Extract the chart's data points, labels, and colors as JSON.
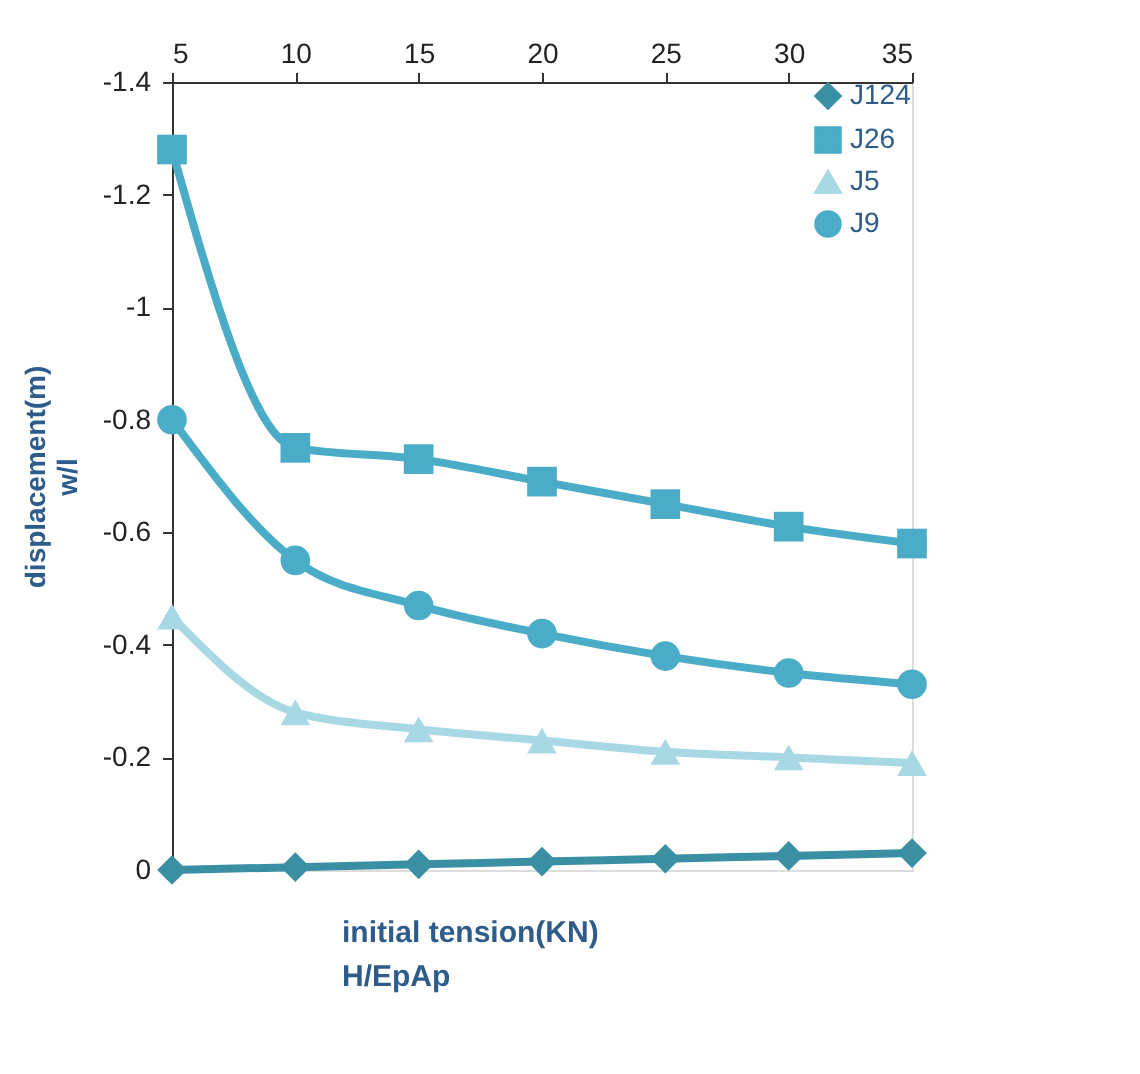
{
  "chart_data": {
    "type": "line",
    "xlabel": "initial tension(KN)\nH/EpAp",
    "ylabel": "displacement(m)\nw/l",
    "x": [
      5,
      10,
      15,
      20,
      25,
      30,
      35
    ],
    "xlim": [
      5,
      35
    ],
    "xticks": [
      5,
      10,
      15,
      20,
      25,
      30,
      35
    ],
    "ylim": [
      0,
      -1.4
    ],
    "yticks": [
      0,
      -0.2,
      -0.4,
      -0.6,
      -0.8,
      -1,
      -1.2,
      -1.4
    ],
    "grid": false,
    "legend": "top right",
    "line_style": "solid",
    "series": [
      {
        "name": "J124",
        "color": "#3a8fa3",
        "marker": "diamond",
        "values": [
          0,
          -0.005,
          -0.01,
          -0.015,
          -0.02,
          -0.025,
          -0.03
        ]
      },
      {
        "name": "J26",
        "color": "#4aacc6",
        "marker": "square",
        "values": [
          -1.28,
          -0.75,
          -0.73,
          -0.69,
          -0.65,
          -0.61,
          -0.58
        ]
      },
      {
        "name": "J5",
        "color": "#a8d8e4",
        "marker": "triangle",
        "values": [
          -0.45,
          -0.28,
          -0.25,
          -0.23,
          -0.21,
          -0.2,
          -0.19
        ]
      },
      {
        "name": "J9",
        "color": "#4aacc6",
        "marker": "circle",
        "values": [
          -0.8,
          -0.55,
          -0.47,
          -0.42,
          -0.38,
          -0.35,
          -0.33
        ]
      }
    ]
  }
}
